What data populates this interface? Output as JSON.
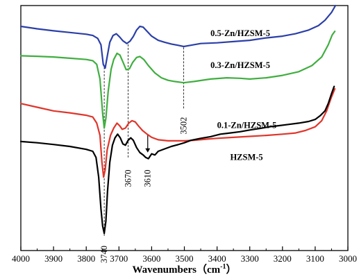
{
  "chart_data": {
    "type": "line",
    "xlabel": "Wavenumbers（cm",
    "xlabel_sup": "-1",
    "xlabel_close": "）",
    "ylabel": "",
    "xlim": [
      4000,
      3000
    ],
    "x_reversed": true,
    "xticks": [
      4000,
      3900,
      3800,
      3700,
      3600,
      3500,
      3400,
      3300,
      3200,
      3100,
      3000
    ],
    "xtick_labels": [
      "4000",
      "3900",
      "3800",
      "3700",
      "3600",
      "3500",
      "3400",
      "3300",
      "3200",
      "3100",
      "3000"
    ],
    "ylim": [
      0,
      1
    ],
    "y_ticks_shown": false,
    "grid": false,
    "series": [
      {
        "name": "0.5-Zn/HZSM-5",
        "color": "#2b3fa8",
        "points": [
          [
            4000,
            0.915
          ],
          [
            3950,
            0.905
          ],
          [
            3900,
            0.897
          ],
          [
            3850,
            0.89
          ],
          [
            3800,
            0.883
          ],
          [
            3780,
            0.878
          ],
          [
            3765,
            0.866
          ],
          [
            3755,
            0.84
          ],
          [
            3748,
            0.76
          ],
          [
            3742,
            0.745
          ],
          [
            3736,
            0.79
          ],
          [
            3728,
            0.85
          ],
          [
            3718,
            0.878
          ],
          [
            3708,
            0.885
          ],
          [
            3698,
            0.872
          ],
          [
            3688,
            0.856
          ],
          [
            3676,
            0.845
          ],
          [
            3666,
            0.855
          ],
          [
            3656,
            0.874
          ],
          [
            3646,
            0.9
          ],
          [
            3636,
            0.915
          ],
          [
            3626,
            0.912
          ],
          [
            3614,
            0.895
          ],
          [
            3600,
            0.875
          ],
          [
            3580,
            0.858
          ],
          [
            3560,
            0.85
          ],
          [
            3540,
            0.843
          ],
          [
            3520,
            0.838
          ],
          [
            3502,
            0.833
          ],
          [
            3480,
            0.838
          ],
          [
            3450,
            0.845
          ],
          [
            3400,
            0.848
          ],
          [
            3350,
            0.853
          ],
          [
            3300,
            0.858
          ],
          [
            3250,
            0.868
          ],
          [
            3200,
            0.875
          ],
          [
            3160,
            0.885
          ],
          [
            3120,
            0.9
          ],
          [
            3090,
            0.918
          ],
          [
            3070,
            0.94
          ],
          [
            3050,
            0.972
          ],
          [
            3038,
            1.01
          ]
        ]
      },
      {
        "name": "0.3-Zn/HZSM-5",
        "color": "#3fae3f",
        "points": [
          [
            4000,
            0.795
          ],
          [
            3950,
            0.793
          ],
          [
            3900,
            0.79
          ],
          [
            3850,
            0.785
          ],
          [
            3800,
            0.78
          ],
          [
            3780,
            0.775
          ],
          [
            3768,
            0.76
          ],
          [
            3758,
            0.7
          ],
          [
            3750,
            0.56
          ],
          [
            3745,
            0.5
          ],
          [
            3740,
            0.54
          ],
          [
            3733,
            0.65
          ],
          [
            3724,
            0.74
          ],
          [
            3716,
            0.78
          ],
          [
            3706,
            0.805
          ],
          [
            3697,
            0.798
          ],
          [
            3688,
            0.77
          ],
          [
            3678,
            0.738
          ],
          [
            3668,
            0.742
          ],
          [
            3658,
            0.768
          ],
          [
            3646,
            0.788
          ],
          [
            3636,
            0.792
          ],
          [
            3624,
            0.78
          ],
          [
            3610,
            0.755
          ],
          [
            3590,
            0.725
          ],
          [
            3570,
            0.705
          ],
          [
            3550,
            0.695
          ],
          [
            3530,
            0.69
          ],
          [
            3502,
            0.685
          ],
          [
            3470,
            0.69
          ],
          [
            3420,
            0.7
          ],
          [
            3370,
            0.705
          ],
          [
            3330,
            0.703
          ],
          [
            3300,
            0.7
          ],
          [
            3250,
            0.705
          ],
          [
            3200,
            0.715
          ],
          [
            3150,
            0.73
          ],
          [
            3110,
            0.755
          ],
          [
            3080,
            0.79
          ],
          [
            3060,
            0.84
          ],
          [
            3048,
            0.88
          ],
          [
            3040,
            0.895
          ]
        ]
      },
      {
        "name": "0.1-Zn/HZSM-5",
        "color": "#e0352b",
        "points": [
          [
            4000,
            0.6
          ],
          [
            3950,
            0.585
          ],
          [
            3900,
            0.57
          ],
          [
            3850,
            0.562
          ],
          [
            3800,
            0.552
          ],
          [
            3780,
            0.545
          ],
          [
            3768,
            0.52
          ],
          [
            3758,
            0.47
          ],
          [
            3752,
            0.36
          ],
          [
            3747,
            0.3
          ],
          [
            3742,
            0.33
          ],
          [
            3736,
            0.41
          ],
          [
            3726,
            0.47
          ],
          [
            3716,
            0.5
          ],
          [
            3706,
            0.52
          ],
          [
            3698,
            0.51
          ],
          [
            3690,
            0.495
          ],
          [
            3680,
            0.5
          ],
          [
            3670,
            0.52
          ],
          [
            3660,
            0.53
          ],
          [
            3650,
            0.525
          ],
          [
            3640,
            0.508
          ],
          [
            3628,
            0.49
          ],
          [
            3614,
            0.475
          ],
          [
            3600,
            0.462
          ],
          [
            3580,
            0.452
          ],
          [
            3550,
            0.448
          ],
          [
            3520,
            0.448
          ],
          [
            3502,
            0.448
          ],
          [
            3470,
            0.45
          ],
          [
            3430,
            0.455
          ],
          [
            3400,
            0.458
          ],
          [
            3350,
            0.462
          ],
          [
            3300,
            0.466
          ],
          [
            3250,
            0.47
          ],
          [
            3200,
            0.475
          ],
          [
            3160,
            0.48
          ],
          [
            3130,
            0.49
          ],
          [
            3100,
            0.505
          ],
          [
            3080,
            0.53
          ],
          [
            3065,
            0.57
          ],
          [
            3052,
            0.62
          ],
          [
            3040,
            0.66
          ]
        ]
      },
      {
        "name": "HZSM-5",
        "color": "#000000",
        "points": [
          [
            4000,
            0.445
          ],
          [
            3950,
            0.44
          ],
          [
            3900,
            0.433
          ],
          [
            3850,
            0.425
          ],
          [
            3800,
            0.413
          ],
          [
            3780,
            0.405
          ],
          [
            3770,
            0.38
          ],
          [
            3762,
            0.3
          ],
          [
            3755,
            0.17
          ],
          [
            3750,
            0.1
          ],
          [
            3745,
            0.07
          ],
          [
            3740,
            0.12
          ],
          [
            3735,
            0.24
          ],
          [
            3728,
            0.36
          ],
          [
            3720,
            0.43
          ],
          [
            3712,
            0.46
          ],
          [
            3704,
            0.475
          ],
          [
            3696,
            0.46
          ],
          [
            3688,
            0.435
          ],
          [
            3680,
            0.43
          ],
          [
            3672,
            0.45
          ],
          [
            3664,
            0.46
          ],
          [
            3656,
            0.45
          ],
          [
            3646,
            0.42
          ],
          [
            3636,
            0.4
          ],
          [
            3626,
            0.39
          ],
          [
            3618,
            0.38
          ],
          [
            3610,
            0.375
          ],
          [
            3600,
            0.395
          ],
          [
            3590,
            0.39
          ],
          [
            3580,
            0.405
          ],
          [
            3560,
            0.415
          ],
          [
            3540,
            0.425
          ],
          [
            3520,
            0.432
          ],
          [
            3500,
            0.44
          ],
          [
            3480,
            0.45
          ],
          [
            3450,
            0.458
          ],
          [
            3420,
            0.465
          ],
          [
            3390,
            0.475
          ],
          [
            3360,
            0.48
          ],
          [
            3330,
            0.485
          ],
          [
            3300,
            0.492
          ],
          [
            3270,
            0.498
          ],
          [
            3240,
            0.505
          ],
          [
            3210,
            0.51
          ],
          [
            3180,
            0.515
          ],
          [
            3150,
            0.52
          ],
          [
            3120,
            0.527
          ],
          [
            3100,
            0.535
          ],
          [
            3085,
            0.55
          ],
          [
            3070,
            0.57
          ],
          [
            3060,
            0.6
          ],
          [
            3050,
            0.64
          ],
          [
            3042,
            0.67
          ]
        ]
      }
    ],
    "series_labels": [
      {
        "text": "0.5-Zn/HZSM-5",
        "x": 3420,
        "y": 0.875
      },
      {
        "text": "0.3-Zn/HZSM-5",
        "x": 3420,
        "y": 0.745
      },
      {
        "text": "0.1-Zn/HZSM-5",
        "x": 3400,
        "y": 0.5
      },
      {
        "text": "HZSM-5",
        "x": 3360,
        "y": 0.37
      }
    ],
    "annotations": [
      {
        "label": "3740",
        "x": 3745,
        "dashed_line": true,
        "from_y": 0.06,
        "to_y": 0.75,
        "text_y": 0.02
      },
      {
        "label": "3670",
        "x": 3672,
        "dashed_line": true,
        "from_y": 0.38,
        "to_y": 0.85,
        "text_y": 0.33
      },
      {
        "label": "3610",
        "x": 3612,
        "dashed_line": false,
        "arrow": true,
        "arrow_from_y": 0.475,
        "arrow_to_y": 0.4,
        "text_y": 0.33
      },
      {
        "label": "3502",
        "x": 3502,
        "dashed_line": true,
        "from_y": 0.58,
        "to_y": 0.83,
        "text_y": 0.545
      }
    ]
  }
}
